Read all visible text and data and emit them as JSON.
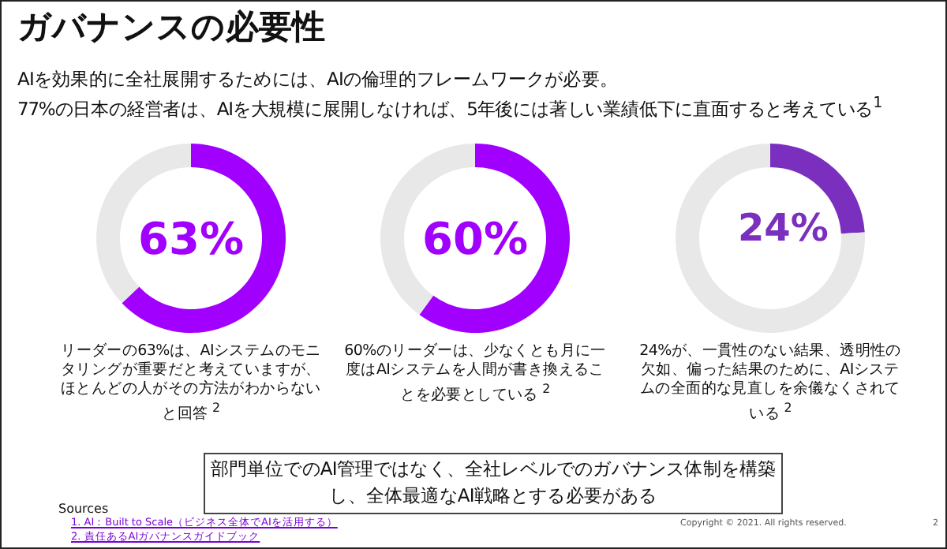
{
  "chart_data": [
    {
      "type": "donut",
      "categories": [
        null,
        null
      ],
      "values": [
        63,
        37
      ],
      "colors": [
        "#a100ff",
        "#e8e8e8"
      ],
      "value_labels": [
        "63%",
        null
      ],
      "annotations": [
        "リーダーの63%は、AIシステムのモニタリングが重要だと考えていますが、ほとんどの人がその方法がわからないと回答 $^{2}$"
      ]
    },
    {
      "type": "donut",
      "categories": [
        null,
        null
      ],
      "values": [
        60,
        40
      ],
      "colors": [
        "#a100ff",
        "#e8e8e8"
      ],
      "value_labels": [
        "60%",
        null
      ],
      "annotations": [
        "60%のリーダーは、少なくとも月に一度はAIシステムを人間が書き換えることを必要としている $^{2}$"
      ]
    },
    {
      "type": "donut",
      "categories": [
        null,
        null
      ],
      "values": [
        24,
        76
      ],
      "colors": [
        "#7b2fbe",
        "#e8e8e8"
      ],
      "value_labels": [
        "24%",
        null
      ],
      "annotations": [
        "24%が、一貫性のない結果、透明性の欠如、偏った結果のために、AIシステムの全面的な見直しを余儀なくされている $^{2}$"
      ]
    },
    {
      "type": "other",
      "title": "ガバナンスの必要性",
      "subtitle": "AIを効果的に全社展開するためには、AIの倫理的フレームワークが必要。",
      "annotations": [
        "77%の日本の経営者は、AIを大規模に展開しなければ、5年後には著しい業績低下に直面すると考えている$^{1}$",
        "部門単位でのAI管理ではなく、全社レベルでのガバナンス体制を構築し、全体最適なAI戦略とする必要がある",
        "Sources",
        "1. AI：Built to Scale（ビジネス全体でAIを活用する）",
        "2. 責任あるAIガバナンスガイドブック",
        "Copyright © 2021. All rights reserved.",
        "2"
      ]
    }
  ]
}
